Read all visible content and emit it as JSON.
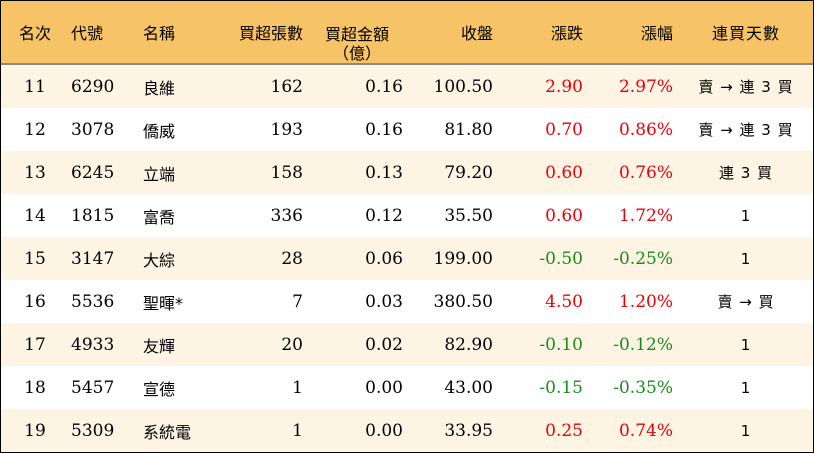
{
  "colors": {
    "header_bg": "#f6c366",
    "stripe_bg": "#fdf4e3",
    "positive": "#e8000b",
    "negative": "#1a8a1a"
  },
  "header": {
    "rank": "名次",
    "code": "代號",
    "name": "名稱",
    "net_buy_lots": "買超張數",
    "net_buy_amount_line1": "買超金額",
    "net_buy_amount_line2": "（億）",
    "close": "收盤",
    "change": "漲跌",
    "change_pct": "漲幅",
    "consecutive_days": "連買天數"
  },
  "rows": [
    {
      "rank": "11",
      "code": "6290",
      "name": "良維",
      "lots": "162",
      "amount": "0.16",
      "close": "100.50",
      "change": "2.90",
      "pct": "2.97%",
      "days": "賣 → 連 3 買",
      "dir": "up"
    },
    {
      "rank": "12",
      "code": "3078",
      "name": "僑威",
      "lots": "193",
      "amount": "0.16",
      "close": "81.80",
      "change": "0.70",
      "pct": "0.86%",
      "days": "賣 → 連 3 買",
      "dir": "up"
    },
    {
      "rank": "13",
      "code": "6245",
      "name": "立端",
      "lots": "158",
      "amount": "0.13",
      "close": "79.20",
      "change": "0.60",
      "pct": "0.76%",
      "days": "連 3 買",
      "dir": "up"
    },
    {
      "rank": "14",
      "code": "1815",
      "name": "富喬",
      "lots": "336",
      "amount": "0.12",
      "close": "35.50",
      "change": "0.60",
      "pct": "1.72%",
      "days": "1",
      "dir": "up"
    },
    {
      "rank": "15",
      "code": "3147",
      "name": "大綜",
      "lots": "28",
      "amount": "0.06",
      "close": "199.00",
      "change": "-0.50",
      "pct": "-0.25%",
      "days": "1",
      "dir": "down"
    },
    {
      "rank": "16",
      "code": "5536",
      "name": "聖暉*",
      "lots": "7",
      "amount": "0.03",
      "close": "380.50",
      "change": "4.50",
      "pct": "1.20%",
      "days": "賣 → 買",
      "dir": "up"
    },
    {
      "rank": "17",
      "code": "4933",
      "name": "友輝",
      "lots": "20",
      "amount": "0.02",
      "close": "82.90",
      "change": "-0.10",
      "pct": "-0.12%",
      "days": "1",
      "dir": "down"
    },
    {
      "rank": "18",
      "code": "5457",
      "name": "宣德",
      "lots": "1",
      "amount": "0.00",
      "close": "43.00",
      "change": "-0.15",
      "pct": "-0.35%",
      "days": "1",
      "dir": "down"
    },
    {
      "rank": "19",
      "code": "5309",
      "name": "系統電",
      "lots": "1",
      "amount": "0.00",
      "close": "33.95",
      "change": "0.25",
      "pct": "0.74%",
      "days": "1",
      "dir": "up"
    }
  ]
}
